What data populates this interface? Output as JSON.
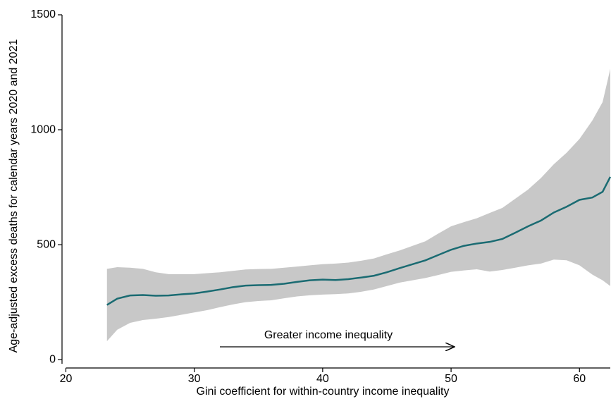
{
  "chart_data": {
    "type": "line",
    "x_label": "Gini coefficient for within-country income inequality",
    "y_label": "Age-adjusted excess deaths for calendar years 2020 and 2021",
    "annotation": "Greater income inequality",
    "x": [
      23.2,
      24,
      25,
      26,
      27,
      28,
      29,
      30,
      31,
      32,
      33,
      34,
      35,
      36,
      37,
      38,
      39,
      40,
      41,
      42,
      43,
      44,
      45,
      46,
      47,
      48,
      49,
      50,
      51,
      52,
      53,
      54,
      55,
      56,
      57,
      58,
      59,
      60,
      61,
      61.8,
      62.4
    ],
    "line": {
      "color": "#1a6b72",
      "values": [
        238,
        265,
        279,
        281,
        278,
        279,
        284,
        288,
        296,
        305,
        315,
        322,
        324,
        325,
        330,
        338,
        345,
        348,
        346,
        350,
        357,
        365,
        380,
        398,
        415,
        432,
        455,
        478,
        495,
        505,
        512,
        525,
        552,
        580,
        605,
        640,
        665,
        695,
        705,
        730,
        795
      ]
    },
    "band": {
      "color": "#c8c8c8",
      "lower": [
        80,
        130,
        160,
        172,
        178,
        185,
        195,
        205,
        215,
        228,
        240,
        250,
        255,
        258,
        267,
        275,
        280,
        283,
        285,
        288,
        295,
        305,
        320,
        335,
        345,
        355,
        368,
        382,
        388,
        393,
        383,
        390,
        400,
        410,
        418,
        435,
        432,
        410,
        370,
        345,
        320
      ],
      "upper": [
        395,
        402,
        400,
        395,
        380,
        372,
        372,
        372,
        376,
        380,
        386,
        392,
        394,
        395,
        400,
        405,
        410,
        415,
        418,
        422,
        430,
        440,
        458,
        475,
        495,
        515,
        548,
        580,
        598,
        615,
        638,
        660,
        700,
        740,
        790,
        850,
        900,
        960,
        1040,
        1120,
        1265
      ]
    },
    "xlim": [
      19.7,
      62.4
    ],
    "ylim": [
      -18,
      1500
    ],
    "xticks": [
      20,
      30,
      40,
      50,
      60
    ],
    "yticks": [
      0,
      500,
      1000,
      1500
    ]
  }
}
